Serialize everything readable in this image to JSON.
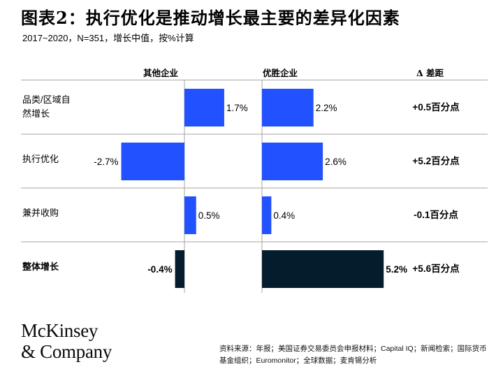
{
  "title": "图表2：执行优化是推动增长最主要的差异化因素",
  "subtitle": "2017~2020，N=351，增长中值，按%计算",
  "columns": {
    "others": "其他企业",
    "winners": "优胜企业",
    "delta": "Δ 差距"
  },
  "colors": {
    "blue": "#2251ff",
    "dark": "#051c2c",
    "divider": "#a6a6a6"
  },
  "chart_data": {
    "type": "bar",
    "orientation": "horizontal",
    "categories": [
      "品类/区域自然增长",
      "执行优化",
      "兼并收购",
      "整体增长"
    ],
    "category_lines": [
      [
        "品类/区域自",
        "然增长"
      ],
      [
        "执行优化"
      ],
      [
        "兼并收购"
      ],
      [
        "整体增长"
      ]
    ],
    "series": [
      {
        "name": "其他企业",
        "values": [
          1.7,
          -2.7,
          0.5,
          -0.4
        ],
        "labels": [
          "1.7%",
          "-2.7%",
          "0.5%",
          "-0.4%"
        ]
      },
      {
        "name": "优胜企业",
        "values": [
          2.2,
          2.6,
          0.4,
          5.2
        ],
        "labels": [
          "2.2%",
          "2.6%",
          "0.4%",
          "5.2%"
        ]
      }
    ],
    "delta": {
      "name": "Δ 差距",
      "values": [
        0.5,
        5.2,
        -0.1,
        5.6
      ],
      "labels": [
        "+0.5百分点",
        "+5.2百分点",
        "-0.1百分点",
        "+5.6百分点"
      ]
    },
    "highlight_row": 3
  },
  "logo": {
    "line1": "McKinsey",
    "line2": "& Company"
  },
  "source": "资料来源：年报；美国证券交易委员会申报材料；Capital IQ；新闻检索；国际货币基金组织；Euromonitor；全球数据；麦肯锡分析"
}
